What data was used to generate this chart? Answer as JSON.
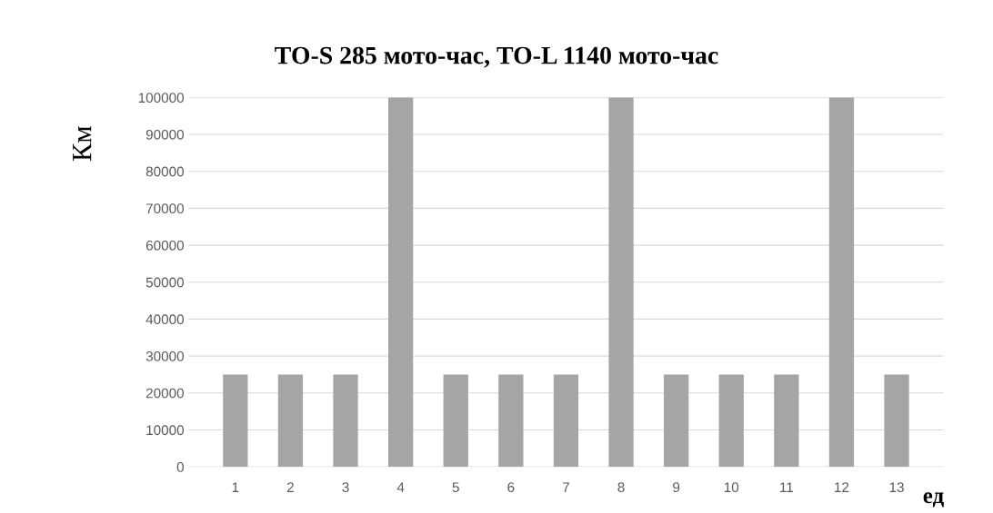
{
  "chart_data": {
    "type": "bar",
    "title": "ТО-S 285 мото-час, ТО-L 1140 мото-час",
    "ylabel": "Км",
    "xlabel": "ед",
    "categories": [
      "1",
      "2",
      "3",
      "4",
      "5",
      "6",
      "7",
      "8",
      "9",
      "10",
      "11",
      "12",
      "13"
    ],
    "values": [
      25000,
      25000,
      25000,
      100000,
      25000,
      25000,
      25000,
      100000,
      25000,
      25000,
      25000,
      100000,
      25000
    ],
    "color": "#a5a5a5",
    "ylim": [
      0,
      100000
    ],
    "yticks": [
      0,
      10000,
      20000,
      30000,
      40000,
      50000,
      60000,
      70000,
      80000,
      90000,
      100000
    ],
    "grid": "y"
  }
}
